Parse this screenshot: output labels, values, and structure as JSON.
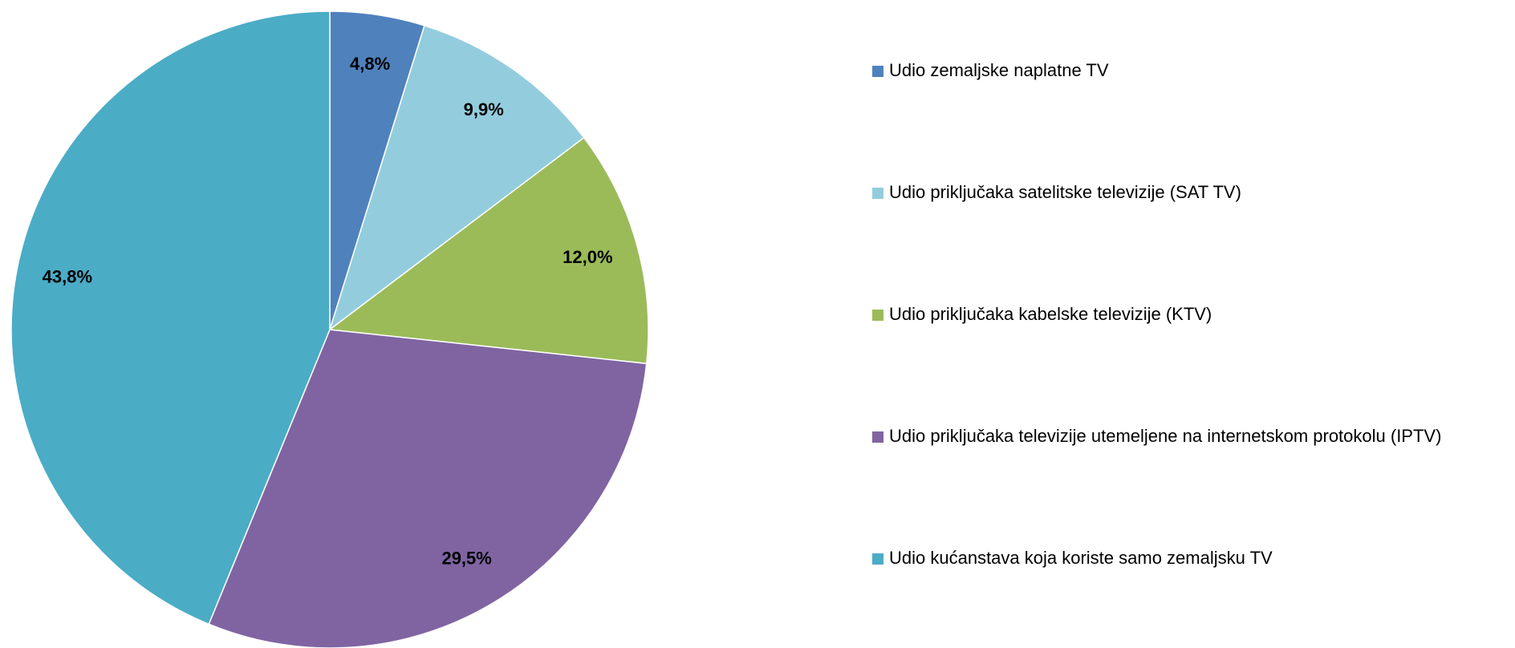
{
  "chart_data": {
    "type": "pie",
    "categories": [
      "Udio zemaljske naplatne TV",
      "Udio priključaka satelitske televizije (SAT TV)",
      "Udio priključaka kabelske televizije (KTV)",
      "Udio priključaka televizije utemeljene na internetskom protokolu (IPTV)",
      "Udio kućanstava koja koriste samo zemaljsku TV"
    ],
    "values": [
      4.8,
      9.9,
      12.0,
      29.5,
      43.8
    ],
    "value_labels": [
      "4,8%",
      "9,9%",
      "12,0%",
      "29,5%",
      "43,8%"
    ],
    "colors": [
      "#4f81bd",
      "#93cddd",
      "#9bbb59",
      "#8064a2",
      "#4bacc6"
    ],
    "legend": "right"
  }
}
